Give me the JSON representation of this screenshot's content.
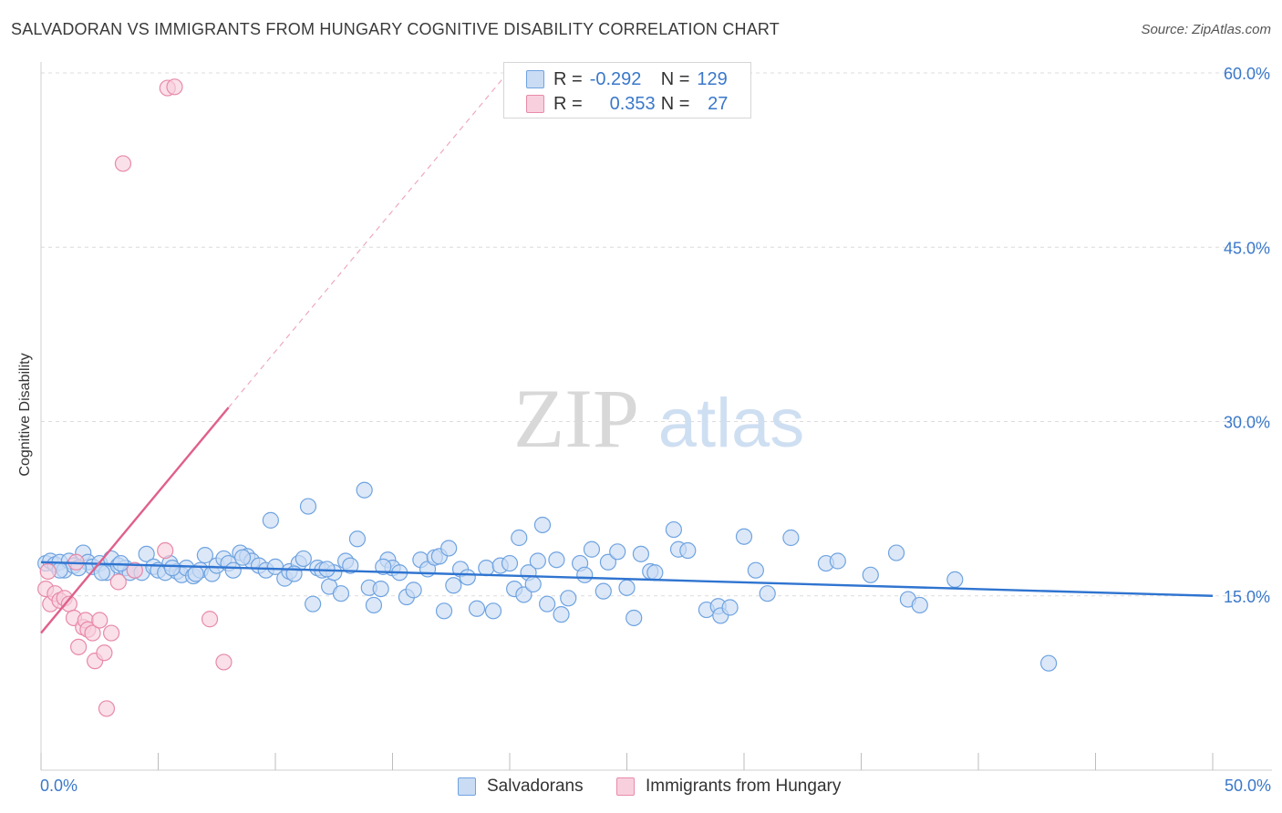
{
  "title": "SALVADORAN VS IMMIGRANTS FROM HUNGARY COGNITIVE DISABILITY CORRELATION CHART",
  "source": "Source: ZipAtlas.com",
  "watermark": {
    "zip": "ZIP",
    "atlas": "atlas"
  },
  "legend": {
    "series1": {
      "r_label": "R =",
      "r_value": "-0.292",
      "n_label": "N =",
      "n_value": "129"
    },
    "series2": {
      "r_label": "R =",
      "r_value": "0.353",
      "n_label": "N =",
      "n_value": "27"
    }
  },
  "chart_data": {
    "type": "scatter",
    "title": "SALVADORAN VS IMMIGRANTS FROM HUNGARY COGNITIVE DISABILITY CORRELATION CHART",
    "xlabel": "",
    "ylabel": "Cognitive Disability",
    "xlim": [
      0,
      50
    ],
    "ylim": [
      0,
      62.5
    ],
    "x_tick_labels": [
      "0.0%",
      "50.0%"
    ],
    "y_ticks": [
      15,
      30,
      45,
      60
    ],
    "y_tick_labels": [
      "15.0%",
      "30.0%",
      "45.0%",
      "60.0%"
    ],
    "grid": true,
    "legend_position": "top-center",
    "series": [
      {
        "name": "Salvadorans",
        "color": "#6fa3e0",
        "fill": "#c9dcf4",
        "line_color": "#2f74d0",
        "trend": {
          "x0": 0.0,
          "y0": 17.9,
          "x1": 50.0,
          "y1": 15.0,
          "dashed_extension": false
        },
        "points": [
          [
            0.2,
            17.8
          ],
          [
            0.4,
            18.0
          ],
          [
            0.6,
            17.7
          ],
          [
            0.8,
            17.9
          ],
          [
            1.0,
            17.2
          ],
          [
            1.2,
            18.0
          ],
          [
            1.4,
            17.6
          ],
          [
            1.8,
            18.7
          ],
          [
            2.0,
            17.9
          ],
          [
            2.2,
            17.5
          ],
          [
            2.5,
            17.8
          ],
          [
            2.8,
            17.0
          ],
          [
            3.0,
            18.2
          ],
          [
            3.3,
            17.6
          ],
          [
            3.6,
            17.4
          ],
          [
            3.8,
            17.0
          ],
          [
            4.0,
            17.2
          ],
          [
            4.3,
            17.0
          ],
          [
            4.5,
            18.6
          ],
          [
            4.8,
            17.5
          ],
          [
            5.0,
            17.2
          ],
          [
            5.3,
            17.0
          ],
          [
            5.5,
            17.8
          ],
          [
            5.8,
            17.1
          ],
          [
            6.0,
            16.8
          ],
          [
            6.2,
            17.4
          ],
          [
            6.5,
            16.7
          ],
          [
            6.8,
            17.2
          ],
          [
            7.0,
            18.5
          ],
          [
            7.3,
            16.9
          ],
          [
            7.5,
            17.6
          ],
          [
            7.8,
            18.2
          ],
          [
            8.0,
            17.8
          ],
          [
            8.2,
            17.2
          ],
          [
            8.5,
            18.7
          ],
          [
            8.8,
            18.4
          ],
          [
            9.0,
            18.0
          ],
          [
            9.3,
            17.6
          ],
          [
            9.6,
            17.2
          ],
          [
            9.8,
            21.5
          ],
          [
            10.0,
            17.5
          ],
          [
            10.4,
            16.5
          ],
          [
            10.6,
            17.1
          ],
          [
            11.0,
            17.8
          ],
          [
            11.2,
            18.2
          ],
          [
            11.4,
            22.7
          ],
          [
            11.6,
            14.3
          ],
          [
            11.8,
            17.4
          ],
          [
            12.0,
            17.2
          ],
          [
            12.3,
            15.8
          ],
          [
            12.5,
            17.0
          ],
          [
            12.8,
            15.2
          ],
          [
            13.0,
            18.0
          ],
          [
            13.2,
            17.6
          ],
          [
            13.5,
            19.9
          ],
          [
            13.8,
            24.1
          ],
          [
            14.0,
            15.7
          ],
          [
            14.2,
            14.2
          ],
          [
            14.5,
            15.6
          ],
          [
            14.8,
            18.1
          ],
          [
            15.0,
            17.4
          ],
          [
            15.3,
            17.0
          ],
          [
            15.6,
            14.9
          ],
          [
            15.9,
            15.5
          ],
          [
            16.2,
            18.1
          ],
          [
            16.5,
            17.3
          ],
          [
            16.8,
            18.3
          ],
          [
            17.0,
            18.4
          ],
          [
            17.2,
            13.7
          ],
          [
            17.4,
            19.1
          ],
          [
            17.6,
            15.9
          ],
          [
            17.9,
            17.3
          ],
          [
            18.2,
            16.6
          ],
          [
            18.6,
            13.9
          ],
          [
            19.0,
            17.4
          ],
          [
            19.3,
            13.7
          ],
          [
            19.6,
            17.6
          ],
          [
            20.0,
            17.8
          ],
          [
            20.2,
            15.6
          ],
          [
            20.4,
            20.0
          ],
          [
            20.6,
            15.1
          ],
          [
            20.8,
            17.0
          ],
          [
            21.0,
            16.0
          ],
          [
            21.2,
            18.0
          ],
          [
            21.4,
            21.1
          ],
          [
            21.6,
            14.3
          ],
          [
            22.0,
            18.1
          ],
          [
            22.2,
            13.4
          ],
          [
            22.5,
            14.8
          ],
          [
            23.0,
            17.8
          ],
          [
            23.2,
            16.8
          ],
          [
            23.5,
            19.0
          ],
          [
            24.0,
            15.4
          ],
          [
            24.2,
            17.9
          ],
          [
            24.6,
            18.8
          ],
          [
            25.0,
            15.7
          ],
          [
            25.3,
            13.1
          ],
          [
            25.6,
            18.6
          ],
          [
            26.0,
            17.1
          ],
          [
            26.2,
            17.0
          ],
          [
            27.0,
            20.7
          ],
          [
            27.2,
            19.0
          ],
          [
            27.6,
            18.9
          ],
          [
            28.4,
            13.8
          ],
          [
            28.9,
            14.1
          ],
          [
            29.0,
            13.3
          ],
          [
            29.4,
            14.0
          ],
          [
            30.0,
            20.1
          ],
          [
            30.5,
            17.2
          ],
          [
            31.0,
            15.2
          ],
          [
            32.0,
            20.0
          ],
          [
            33.5,
            17.8
          ],
          [
            34.0,
            18.0
          ],
          [
            35.4,
            16.8
          ],
          [
            36.5,
            18.7
          ],
          [
            37.0,
            14.7
          ],
          [
            37.5,
            14.2
          ],
          [
            39.0,
            16.4
          ],
          [
            43.0,
            9.2
          ],
          [
            0.8,
            17.2
          ],
          [
            1.6,
            17.4
          ],
          [
            2.6,
            17.0
          ],
          [
            3.4,
            17.8
          ],
          [
            5.6,
            17.4
          ],
          [
            6.6,
            16.9
          ],
          [
            8.6,
            18.3
          ],
          [
            10.8,
            16.9
          ],
          [
            12.2,
            17.3
          ],
          [
            14.6,
            17.5
          ]
        ]
      },
      {
        "name": "Immigrants from Hungary",
        "color": "#e88aa8",
        "fill": "#f8d0dd",
        "line_color": "#e0608a",
        "trend": {
          "x0": 0.0,
          "y0": 11.8,
          "x1": 8.0,
          "y1": 31.2,
          "dashed_extension": true,
          "dash_to": {
            "x": 19.7,
            "y": 59.5
          }
        },
        "points": [
          [
            0.2,
            15.6
          ],
          [
            0.4,
            14.3
          ],
          [
            0.6,
            15.2
          ],
          [
            0.8,
            14.6
          ],
          [
            1.0,
            14.8
          ],
          [
            1.2,
            14.3
          ],
          [
            1.4,
            13.1
          ],
          [
            1.6,
            10.6
          ],
          [
            1.8,
            12.3
          ],
          [
            1.9,
            12.9
          ],
          [
            2.0,
            12.1
          ],
          [
            2.2,
            11.8
          ],
          [
            2.3,
            9.4
          ],
          [
            2.5,
            12.9
          ],
          [
            2.7,
            10.1
          ],
          [
            2.8,
            5.3
          ],
          [
            3.0,
            11.8
          ],
          [
            3.3,
            16.2
          ],
          [
            3.5,
            52.2
          ],
          [
            4.0,
            17.2
          ],
          [
            5.3,
            18.9
          ],
          [
            5.4,
            58.7
          ],
          [
            5.7,
            58.8
          ],
          [
            7.2,
            13.0
          ],
          [
            7.8,
            9.3
          ],
          [
            0.3,
            17.1
          ],
          [
            1.5,
            17.9
          ]
        ]
      }
    ]
  }
}
